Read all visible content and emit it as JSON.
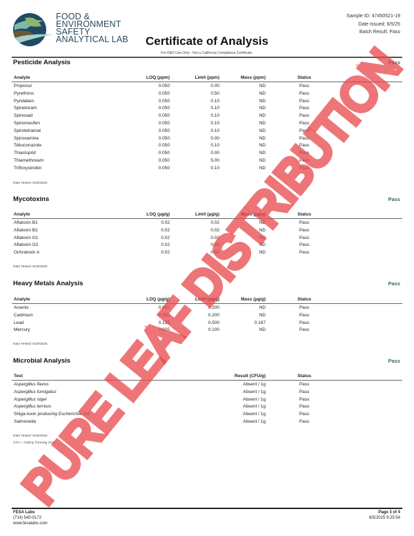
{
  "header": {
    "lab_name_lines": [
      "FOOD &",
      "ENVIRONMENT",
      "SAFETY",
      "ANALYTICAL LAB"
    ],
    "sample_id": "Sample ID: 47450521-19",
    "date_issued": "Date Issued: 6/5/25",
    "batch_result": "Batch Result: Pass",
    "title": "Certificate of Analysis",
    "disclaimer": "For R&D Use Only - Not a California Compliance Certificate."
  },
  "sections": [
    {
      "title": "Pesticide Analysis",
      "result": "Pass",
      "columns": [
        "Analyte",
        "LOQ (ppm)",
        "Limit (ppm)",
        "Mass (ppm)",
        "Status"
      ],
      "rows": [
        [
          "Propoxur",
          "0.050",
          "0.00",
          "ND",
          "Pass"
        ],
        [
          "Pyrethrins",
          "0.050",
          "0.50",
          "ND",
          "Pass"
        ],
        [
          "Pyridaben",
          "0.050",
          "0.10",
          "ND",
          "Pass"
        ],
        [
          "Spinetoram",
          "0.050",
          "0.10",
          "ND",
          "Pass"
        ],
        [
          "Spinosad",
          "0.050",
          "0.10",
          "ND",
          "Pass"
        ],
        [
          "Spiromesifen",
          "0.050",
          "0.10",
          "ND",
          "Pass"
        ],
        [
          "Spirotetramat",
          "0.050",
          "0.10",
          "ND",
          "Pass"
        ],
        [
          "Spiroxamine",
          "0.050",
          "0.00",
          "ND",
          "Pass"
        ],
        [
          "Tebuconazole",
          "0.050",
          "0.10",
          "ND",
          "Pass"
        ],
        [
          "Thiacloprid",
          "0.050",
          "0.00",
          "ND",
          "Pass"
        ],
        [
          "Thiamethoxam",
          "0.050",
          "5.00",
          "ND",
          "Pass"
        ],
        [
          "Trifloxystrobin",
          "0.050",
          "0.10",
          "ND",
          "Pass"
        ]
      ],
      "date_tested": "Date Tested: 5/28/2025"
    },
    {
      "title": "Mycotoxins",
      "result": "Pass",
      "columns": [
        "Analyte",
        "LOQ (µg/g)",
        "Limit (µg/g)",
        "Mass (µg/g)",
        "Status"
      ],
      "rows": [
        [
          "Aflatoxin B1",
          "0.02",
          "0.02",
          "ND",
          "Pass"
        ],
        [
          "Aflatoxin B2",
          "0.02",
          "0.02",
          "ND",
          "Pass"
        ],
        [
          "Aflatoxin G1",
          "0.02",
          "0.02",
          "ND",
          "Pass"
        ],
        [
          "Aflatoxin G2",
          "0.02",
          "0.02",
          "ND",
          "Pass"
        ],
        [
          "Ochratoxin A",
          "0.02",
          "0.02",
          "ND",
          "Pass"
        ]
      ],
      "date_tested": "Date Tested: 5/28/2025"
    },
    {
      "title": "Heavy Metals Analysis",
      "result": "Pass",
      "columns": [
        "Analyte",
        "LOQ (µg/g)",
        "Limit (µg/g)",
        "Mass (µg/g)",
        "Status"
      ],
      "rows": [
        [
          "Arsenic",
          "0.050",
          "0.200",
          "ND",
          "Pass"
        ],
        [
          "Cadmium",
          "0.050",
          "0.200",
          "ND",
          "Pass"
        ],
        [
          "Lead",
          "0.125",
          "0.500",
          "0.167",
          "Pass"
        ],
        [
          "Mercury",
          "0.025",
          "0.100",
          "ND",
          "Pass"
        ]
      ],
      "date_tested": "Date Tested: 5/29/2025"
    },
    {
      "title": "Microbial Analysis",
      "result": "Pass",
      "columns": [
        "Test",
        "",
        "",
        "Result (CFU/g)",
        "Status"
      ],
      "rows": [
        [
          {
            "plain": "",
            "italic": "Aspergillus flavus"
          },
          "",
          "",
          "Absent / 1g",
          "Pass"
        ],
        [
          {
            "plain": "",
            "italic": "Aspergillus fumigatus"
          },
          "",
          "",
          "Absent / 1g",
          "Pass"
        ],
        [
          {
            "plain": "",
            "italic": "Aspergillus niger"
          },
          "",
          "",
          "Absent / 1g",
          "Pass"
        ],
        [
          {
            "plain": "",
            "italic": "Aspergillus terreus"
          },
          "",
          "",
          "Absent / 1g",
          "Pass"
        ],
        [
          {
            "plain": "Shiga-toxin producing ",
            "italic": "Escherichia coli"
          },
          "",
          "",
          "Absent / 1g",
          "Pass"
        ],
        [
          {
            "plain": "",
            "italic": "Salmonella"
          },
          "",
          "",
          "Absent / 1g",
          "Pass"
        ]
      ],
      "date_tested": "Date Tested: 5/30/2025",
      "note": "CFU = Colony Forming Units"
    }
  ],
  "footer": {
    "company": "FESA Labs",
    "phone": "(714) 540-0172",
    "website": "www.fesalabs.com",
    "page": "Page 3 of 4",
    "timestamp": "6/5/2025 9:25:54"
  },
  "watermark": {
    "text": "PURE LEAF DISTRIBUTION",
    "color": "#e8474a"
  },
  "colors": {
    "pass_green": "#3d6b57",
    "logo_navy": "#1f4a63",
    "logo_teal": "#7fb7ad",
    "logo_green": "#8fb46a",
    "logo_brown": "#6b5a35"
  }
}
